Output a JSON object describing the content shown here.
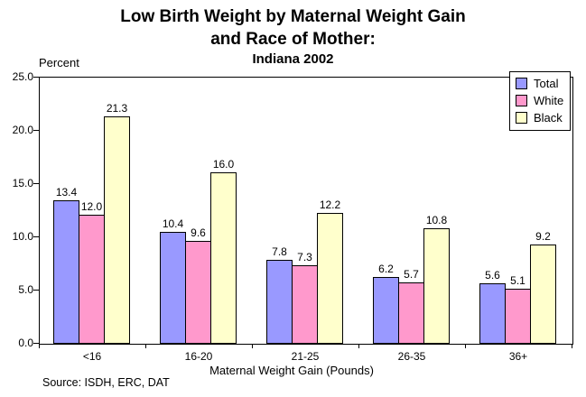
{
  "chart_data": {
    "type": "bar",
    "title_lines": [
      "Low Birth Weight by Maternal Weight Gain",
      "and Race of Mother:"
    ],
    "subtitle": "Indiana 2002",
    "ylabel": "Percent",
    "xlabel": "Maternal Weight Gain (Pounds)",
    "categories": [
      "<16",
      "16-20",
      "21-25",
      "26-35",
      "36+"
    ],
    "series": [
      {
        "name": "Total",
        "color": "#9999ff",
        "values": [
          13.4,
          10.4,
          7.8,
          6.2,
          5.6
        ]
      },
      {
        "name": "White",
        "color": "#ff99cc",
        "values": [
          12.0,
          9.6,
          7.3,
          5.7,
          5.1
        ]
      },
      {
        "name": "Black",
        "color": "#ffffcc",
        "values": [
          21.3,
          16.0,
          12.2,
          10.8,
          9.2
        ]
      }
    ],
    "ylim": [
      0,
      25
    ],
    "ytick_labels": [
      "0.0",
      "5.0",
      "10.0",
      "15.0",
      "20.0",
      "25.0"
    ],
    "grid": false,
    "legend_position": "top-right",
    "bar_border_color": "#000000",
    "value_labels_shown": true
  },
  "source": "Source:  ISDH, ERC, DAT"
}
